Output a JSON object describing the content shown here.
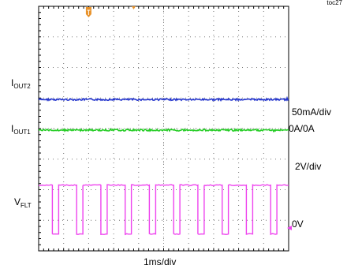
{
  "figure_id": "toc27",
  "chart_data": {
    "type": "line",
    "title": "",
    "xlabel": "1ms/div",
    "x_divisions": 10,
    "y_divisions": 8,
    "scales": {
      "current": "50mA/div",
      "current_zero": "0A/0A",
      "voltage": "2V/div",
      "voltage_zero": "0V"
    },
    "series": [
      {
        "name": "I_OUT2",
        "label_main": "I",
        "label_sub": "OUT2",
        "color": "#2233cc",
        "level_div": 3.05,
        "shape": "flat"
      },
      {
        "name": "I_OUT1",
        "label_main": "I",
        "label_sub": "OUT1",
        "color": "#22cc22",
        "level_div": 4.05,
        "shape": "flat"
      },
      {
        "name": "V_FLT",
        "label_main": "V",
        "label_sub": "FLT",
        "color": "#ee44ee",
        "shape": "pulse",
        "high_div": 5.85,
        "low_div": 7.45,
        "period_div": 0.97,
        "low_width_div": 0.25,
        "first_fall_div": 0.55
      }
    ],
    "trigger_color": "#e8922a",
    "grid": true
  }
}
